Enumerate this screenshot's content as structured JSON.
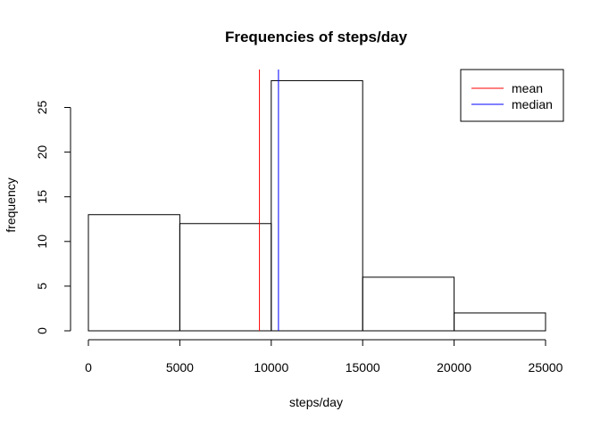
{
  "chart_data": {
    "type": "bar",
    "title": "Frequencies of steps/day",
    "xlabel": "steps/day",
    "ylabel": "frequency",
    "bins": [
      {
        "from": 0,
        "to": 5000,
        "count": 13
      },
      {
        "from": 5000,
        "to": 10000,
        "count": 12
      },
      {
        "from": 10000,
        "to": 15000,
        "count": 28
      },
      {
        "from": 15000,
        "to": 20000,
        "count": 6
      },
      {
        "from": 20000,
        "to": 25000,
        "count": 2
      }
    ],
    "xlim": [
      0,
      25000
    ],
    "ylim": [
      0,
      29
    ],
    "xticks": [
      0,
      5000,
      10000,
      15000,
      20000,
      25000
    ],
    "xtick_labels": [
      "0",
      "5000",
      "10000",
      "15000",
      "20000",
      "25000"
    ],
    "yticks": [
      0,
      5,
      10,
      15,
      20,
      25
    ],
    "ytick_labels": [
      "0",
      "5",
      "10",
      "15",
      "20",
      "25"
    ],
    "grid": false,
    "vlines": [
      {
        "name": "mean",
        "x": 9354,
        "color": "#ff0000"
      },
      {
        "name": "median",
        "x": 10395,
        "color": "#0000ff"
      }
    ],
    "legend": {
      "placement": "top-right",
      "entries": [
        {
          "label": "mean",
          "color": "#ff0000"
        },
        {
          "label": "median",
          "color": "#0000ff"
        }
      ]
    }
  }
}
